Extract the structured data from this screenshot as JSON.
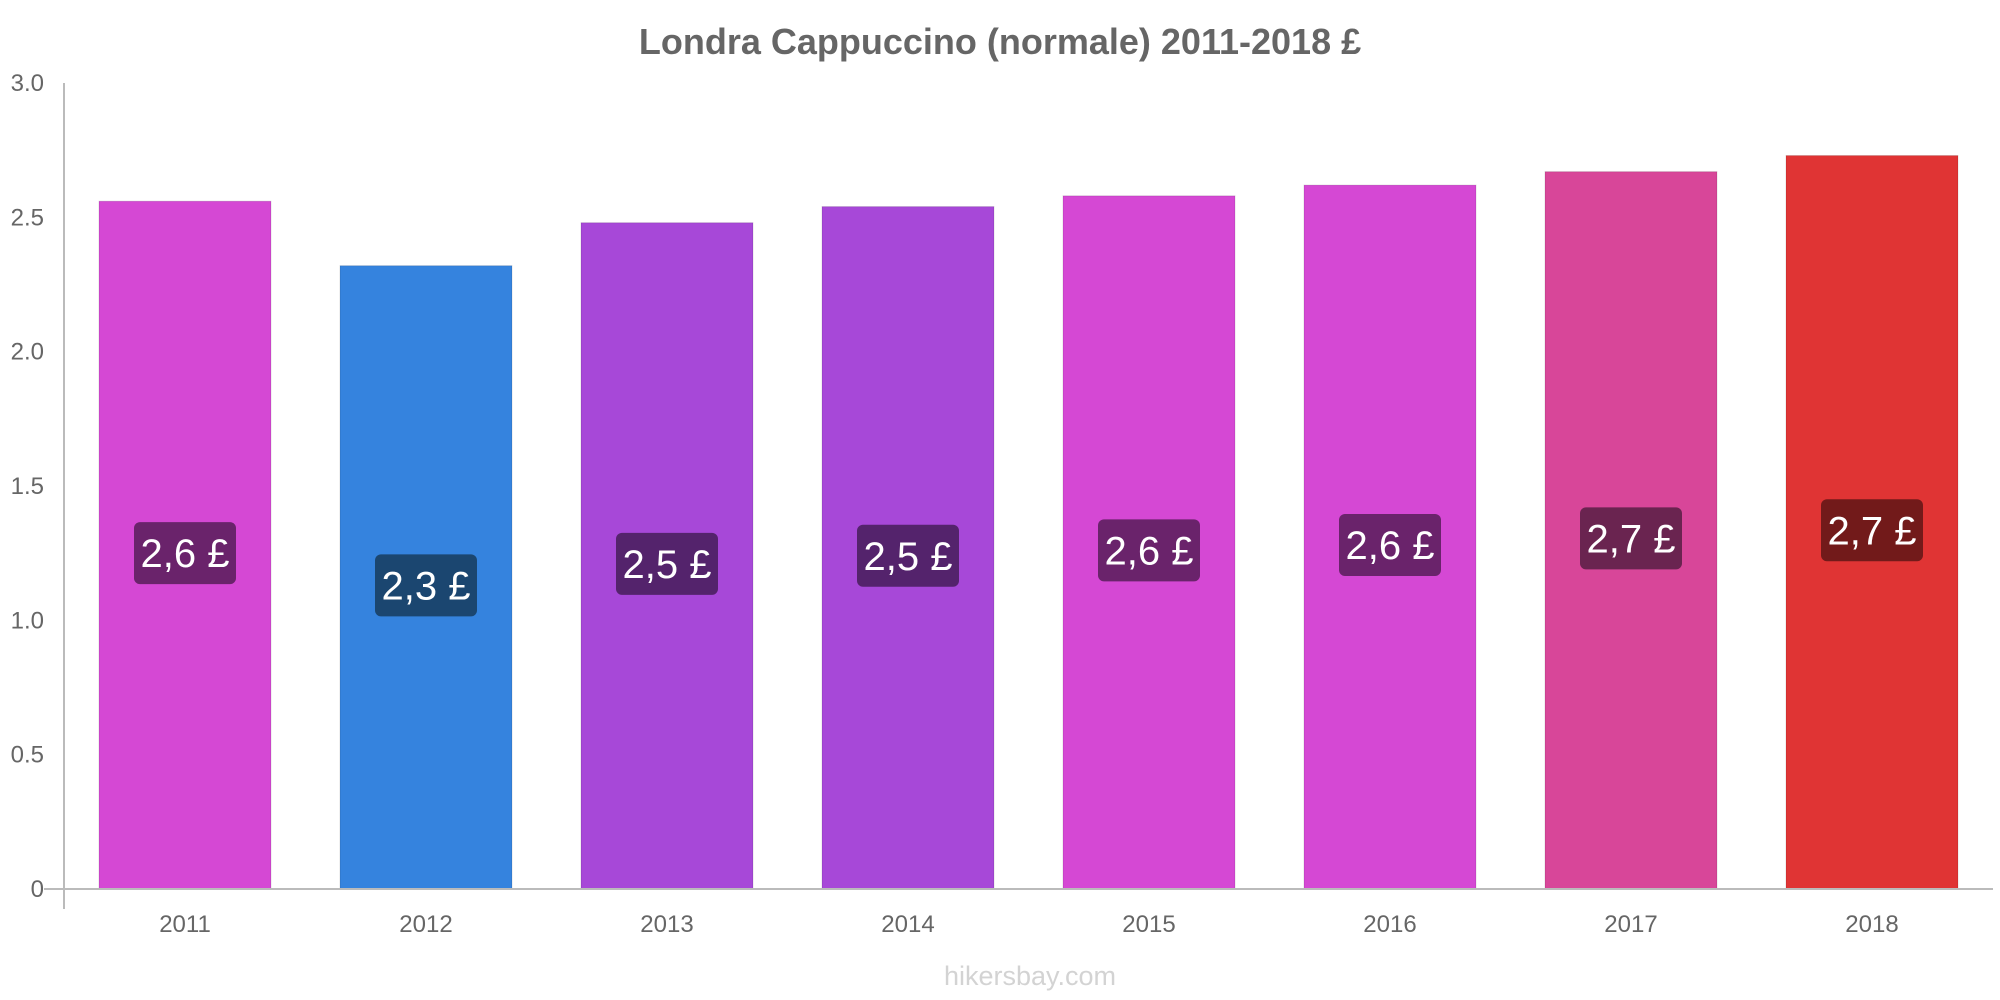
{
  "chart_data": {
    "type": "bar",
    "title": "Londra Cappuccino (normale) 2011-2018 £",
    "xlabel": "",
    "ylabel": "",
    "ylim": [
      0,
      3.0
    ],
    "yticks": [
      0,
      0.5,
      1.0,
      1.5,
      2.0,
      2.5,
      3.0
    ],
    "ytick_labels": [
      "0",
      "0.5",
      "1.0",
      "1.5",
      "2.0",
      "2.5",
      "3.0"
    ],
    "grid": false,
    "legend": "none",
    "categories": [
      "2011",
      "2012",
      "2013",
      "2014",
      "2015",
      "2016",
      "2017",
      "2018"
    ],
    "values": [
      2.56,
      2.32,
      2.48,
      2.54,
      2.58,
      2.62,
      2.67,
      2.73
    ],
    "data_labels": [
      "2,6 £",
      "2,3 £",
      "2,5 £",
      "2,5 £",
      "2,6 £",
      "2,6 £",
      "2,7 £",
      "2,7 £"
    ],
    "bar_colors": [
      "#D548D4",
      "#3583DE",
      "#A748D8",
      "#A748D8",
      "#D548D4",
      "#D548D4",
      "#D84699",
      "#E03434"
    ],
    "label_colors": [
      "#6A236B",
      "#1B4670",
      "#54236C",
      "#54236C",
      "#6A236B",
      "#6A236B",
      "#6A2450",
      "#721A1A"
    ]
  },
  "footer": {
    "watermark": "hikersbay.com"
  }
}
